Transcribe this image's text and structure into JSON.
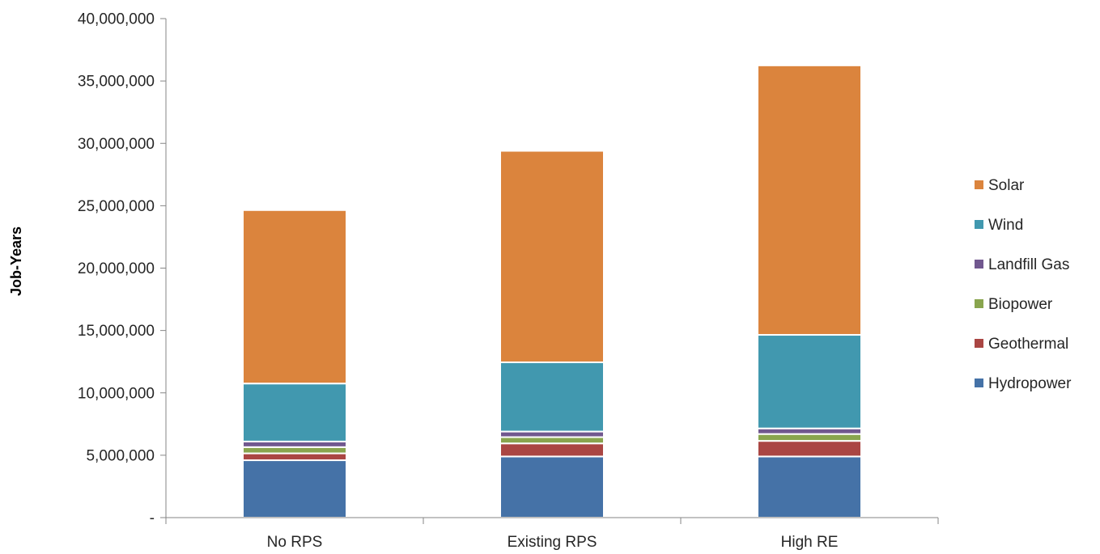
{
  "chart_data": {
    "type": "bar",
    "stacked": true,
    "title": "",
    "xlabel": "",
    "ylabel": "Job-Years",
    "ylim": [
      0,
      40000000
    ],
    "y_ticks": [
      0,
      5000000,
      10000000,
      15000000,
      20000000,
      25000000,
      30000000,
      35000000,
      40000000
    ],
    "y_tick_labels": [
      "-",
      "5,000,000",
      "10,000,000",
      "15,000,000",
      "20,000,000",
      "25,000,000",
      "30,000,000",
      "35,000,000",
      "40,000,000"
    ],
    "categories": [
      "No RPS",
      "Existing RPS",
      "High RE"
    ],
    "grid": false,
    "legend_position": "right",
    "series": [
      {
        "name": "Hydropower",
        "color": "#4572A7",
        "values": [
          4600000,
          4900000,
          4900000
        ]
      },
      {
        "name": "Geothermal",
        "color": "#AA4643",
        "values": [
          550000,
          1050000,
          1250000
        ]
      },
      {
        "name": "Biopower",
        "color": "#89A54E",
        "values": [
          500000,
          500000,
          550000
        ]
      },
      {
        "name": "Landfill Gas",
        "color": "#71588F",
        "values": [
          450000,
          450000,
          450000
        ]
      },
      {
        "name": "Wind",
        "color": "#4198AF",
        "values": [
          4650000,
          5550000,
          7500000
        ]
      },
      {
        "name": "Solar",
        "color": "#DB843D",
        "values": [
          13900000,
          16950000,
          21600000
        ]
      }
    ]
  }
}
